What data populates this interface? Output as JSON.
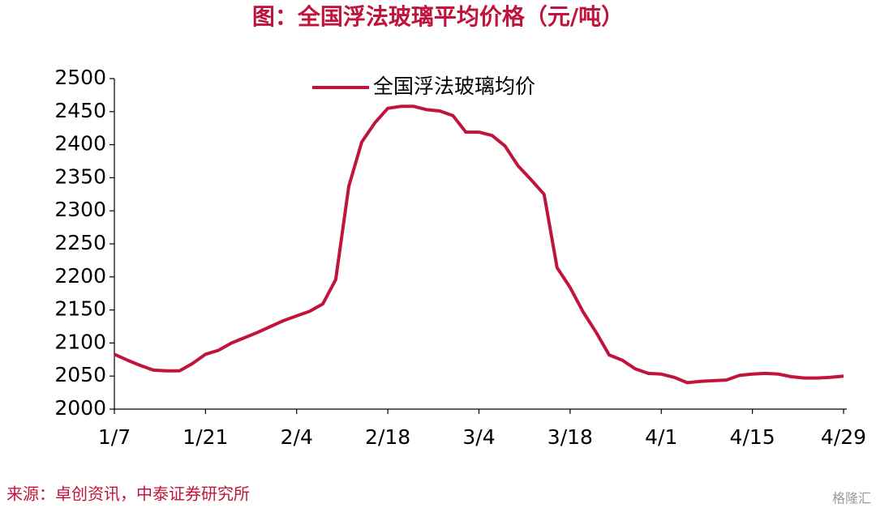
{
  "chart_data": {
    "type": "line",
    "title": "图：全国浮法玻璃平均价格（元/吨）",
    "source": "来源：卓创资讯，中泰证券研究所",
    "watermark": "格隆汇",
    "categories": [
      "1/7",
      null,
      null,
      null,
      null,
      null,
      null,
      "1/21",
      null,
      null,
      null,
      null,
      null,
      null,
      "2/4",
      null,
      null,
      null,
      null,
      null,
      null,
      "2/18",
      null,
      null,
      null,
      null,
      null,
      null,
      "3/4",
      null,
      null,
      null,
      null,
      null,
      null,
      "3/18",
      null,
      null,
      null,
      null,
      null,
      null,
      "4/1",
      null,
      null,
      null,
      null,
      null,
      null,
      "4/15",
      null,
      null,
      null,
      null,
      null,
      null,
      "4/29"
    ],
    "series": [
      {
        "name": "全国浮法玻璃均价",
        "color": "#c0143c",
        "values": [
          2083,
          2074,
          2066,
          2059,
          2058,
          2058,
          2069,
          2083,
          2089,
          2100,
          2108,
          2116,
          2125,
          2134,
          2141,
          2148,
          2159,
          2196,
          2337,
          2404,
          2433,
          2455,
          2458,
          2458,
          2453,
          2451,
          2444,
          2419,
          2419,
          2414,
          2398,
          2368,
          2347,
          2325,
          2214,
          2184,
          2147,
          2116,
          2082,
          2074,
          2061,
          2054,
          2053,
          2048,
          2040,
          2042,
          2043,
          2044,
          2051,
          2053,
          2054,
          2053,
          2049,
          2047,
          2047,
          2048,
          2050
        ]
      }
    ],
    "ylim": [
      2000,
      2500
    ],
    "yticks": [
      2000,
      2050,
      2100,
      2150,
      2200,
      2250,
      2300,
      2350,
      2400,
      2450,
      2500
    ],
    "legend": "top"
  }
}
